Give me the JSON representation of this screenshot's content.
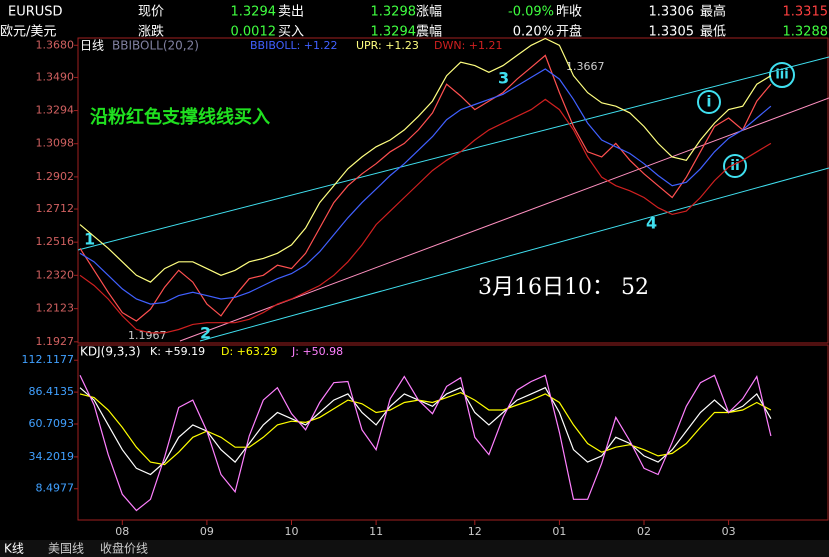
{
  "header": {
    "symbol": "EURUSD",
    "name": "欧元/美元",
    "fields": [
      {
        "label": "现价",
        "value": "1.3294"
      },
      {
        "label": "卖出",
        "value": "1.3298"
      },
      {
        "label": "涨幅",
        "value": "-0.09%"
      },
      {
        "label": "昨收",
        "value": "1.3306"
      },
      {
        "label": "最高",
        "value": "1.3315"
      },
      {
        "label": "涨跌",
        "value": "0.0012"
      },
      {
        "label": "买入",
        "value": "1.3294"
      },
      {
        "label": "震幅",
        "value": "0.20%"
      },
      {
        "label": "开盘",
        "value": "1.3305"
      },
      {
        "label": "最低",
        "value": "1.3288"
      }
    ]
  },
  "chart_data": [
    {
      "type": "line",
      "period": "日线",
      "indicator": "BBIBOLL(20,2)",
      "annotations": [
        "1",
        "2",
        "3",
        "4",
        "i",
        "ii",
        "iii",
        "1.3667",
        "1.1967",
        "沿粉红色支撑线线买入",
        "3月16日10： 52"
      ],
      "categories": [
        null,
        null,
        null,
        "08",
        null,
        null,
        null,
        null,
        null,
        "09",
        null,
        null,
        null,
        null,
        null,
        "10",
        null,
        null,
        null,
        null,
        null,
        "11",
        null,
        null,
        null,
        null,
        null,
        null,
        "12",
        null,
        null,
        null,
        null,
        null,
        "01",
        null,
        null,
        null,
        null,
        null,
        "02",
        null,
        null,
        null,
        null,
        null,
        "03",
        null,
        null,
        null
      ],
      "ylim": [
        1.192,
        1.3723
      ],
      "yticks": [
        {
          "value": 1.368,
          "label": "1.3680"
        },
        {
          "value": 1.349,
          "label": "1.3490"
        },
        {
          "value": 1.3294,
          "label": "1.3294"
        },
        {
          "value": 1.3098,
          "label": "1.3098"
        },
        {
          "value": 1.2902,
          "label": "1.2902"
        },
        {
          "value": 1.2712,
          "label": "1.2712"
        },
        {
          "value": 1.2516,
          "label": "1.2516"
        },
        {
          "value": 1.232,
          "label": "1.2320"
        },
        {
          "value": 1.2123,
          "label": "1.2123"
        },
        {
          "value": 1.1927,
          "label": "1.1927"
        }
      ],
      "series": [
        {
          "color": "#ff5050",
          "values": [
            1.248,
            1.235,
            1.222,
            1.21,
            1.205,
            1.212,
            1.225,
            1.235,
            1.228,
            1.215,
            1.208,
            1.22,
            1.23,
            1.232,
            1.238,
            1.236,
            1.245,
            1.26,
            1.275,
            1.285,
            1.292,
            1.298,
            1.305,
            1.31,
            1.318,
            1.328,
            1.345,
            1.338,
            1.33,
            1.335,
            1.34,
            1.348,
            1.355,
            1.362,
            1.34,
            1.32,
            1.305,
            1.302,
            1.31,
            1.3,
            1.292,
            1.285,
            1.278,
            1.29,
            1.305,
            1.32,
            1.325,
            1.318,
            1.335,
            1.345
          ]
        },
        {
          "name": "BBIBOLL: +1.22",
          "color": "#4060ff",
          "values": [
            1.245,
            1.24,
            1.232,
            1.224,
            1.218,
            1.215,
            1.216,
            1.22,
            1.222,
            1.22,
            1.218,
            1.219,
            1.222,
            1.226,
            1.23,
            1.233,
            1.238,
            1.246,
            1.256,
            1.266,
            1.275,
            1.283,
            1.291,
            1.298,
            1.306,
            1.314,
            1.324,
            1.33,
            1.333,
            1.336,
            1.339,
            1.344,
            1.349,
            1.354,
            1.348,
            1.336,
            1.322,
            1.312,
            1.308,
            1.304,
            1.298,
            1.291,
            1.285,
            1.287,
            1.295,
            1.305,
            1.313,
            1.318,
            1.325,
            1.332
          ]
        },
        {
          "name": "UPR: +1.23",
          "color": "#ffff80",
          "values": [
            1.262,
            1.255,
            1.248,
            1.24,
            1.232,
            1.228,
            1.236,
            1.24,
            1.24,
            1.236,
            1.232,
            1.235,
            1.24,
            1.242,
            1.245,
            1.25,
            1.26,
            1.275,
            1.285,
            1.295,
            1.302,
            1.308,
            1.312,
            1.318,
            1.326,
            1.335,
            1.35,
            1.358,
            1.356,
            1.352,
            1.356,
            1.362,
            1.368,
            1.372,
            1.368,
            1.35,
            1.34,
            1.334,
            1.332,
            1.328,
            1.32,
            1.31,
            1.302,
            1.3,
            1.312,
            1.322,
            1.33,
            1.332,
            1.345,
            1.35
          ]
        },
        {
          "name": "DWN: +1.21",
          "color": "#d02020",
          "values": [
            1.232,
            1.226,
            1.218,
            1.208,
            1.2,
            1.198,
            1.198,
            1.2,
            1.203,
            1.204,
            1.204,
            1.204,
            1.206,
            1.21,
            1.215,
            1.218,
            1.222,
            1.226,
            1.232,
            1.24,
            1.25,
            1.262,
            1.27,
            1.278,
            1.286,
            1.294,
            1.3,
            1.305,
            1.312,
            1.318,
            1.322,
            1.326,
            1.33,
            1.336,
            1.33,
            1.318,
            1.302,
            1.29,
            1.285,
            1.282,
            1.278,
            1.272,
            1.268,
            1.27,
            1.278,
            1.288,
            1.296,
            1.3,
            1.305,
            1.31
          ]
        }
      ]
    },
    {
      "type": "line",
      "indicator": "KDJ(9,3,3)",
      "ylim": [
        -16.7,
        124.4
      ],
      "yticks": [
        112.1177,
        86.4135,
        60.7093,
        34.2019,
        8.4977
      ],
      "series": [
        {
          "name": "K: +59.19",
          "color": "#ffffff",
          "values": [
            90,
            80,
            60,
            40,
            25,
            20,
            30,
            50,
            60,
            55,
            40,
            30,
            45,
            60,
            70,
            65,
            60,
            70,
            80,
            85,
            70,
            60,
            75,
            85,
            80,
            75,
            85,
            90,
            70,
            60,
            70,
            80,
            85,
            90,
            70,
            40,
            30,
            35,
            50,
            45,
            35,
            30,
            40,
            55,
            70,
            80,
            70,
            75,
            85,
            65
          ]
        },
        {
          "name": "D: +63.29",
          "color": "#ffff00",
          "values": [
            85,
            82,
            72,
            58,
            42,
            30,
            28,
            38,
            50,
            55,
            50,
            42,
            42,
            50,
            60,
            63,
            62,
            66,
            73,
            80,
            77,
            70,
            72,
            78,
            80,
            78,
            82,
            86,
            80,
            72,
            72,
            76,
            80,
            85,
            78,
            60,
            45,
            38,
            42,
            44,
            40,
            35,
            37,
            45,
            58,
            70,
            70,
            72,
            78,
            72
          ]
        },
        {
          "name": "J: +50.98",
          "color": "#ff80ff",
          "values": [
            100,
            76,
            36,
            4,
            -9,
            0,
            34,
            74,
            80,
            55,
            20,
            6,
            51,
            80,
            90,
            69,
            56,
            78,
            94,
            95,
            56,
            40,
            81,
            99,
            80,
            69,
            91,
            98,
            50,
            36,
            66,
            88,
            95,
            100,
            54,
            0,
            0,
            29,
            66,
            47,
            25,
            20,
            46,
            75,
            94,
            100,
            70,
            81,
            99,
            51
          ]
        }
      ]
    }
  ],
  "tabs": [
    "K线",
    "美国线",
    "收盘价线"
  ]
}
